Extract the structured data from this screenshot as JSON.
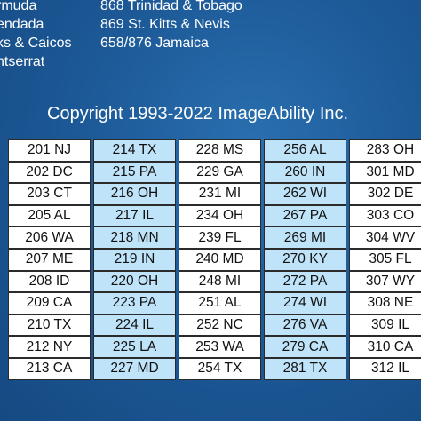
{
  "top_left": [
    "rmuda",
    "endada",
    "ks & Caicos",
    "ntserrat"
  ],
  "top_right": [
    "868 Trinidad & Tobago",
    "869 St. Kitts & Nevis",
    "658/876 Jamaica"
  ],
  "copyright": "Copyright 1993-2022 ImageAbility Inc.",
  "rows": [
    [
      "201 NJ",
      "214 TX",
      "228 MS",
      "256 AL",
      "283 OH"
    ],
    [
      "202 DC",
      "215 PA",
      "229 GA",
      "260 IN",
      "301 MD"
    ],
    [
      "203 CT",
      "216 OH",
      "231 MI",
      "262 WI",
      "302 DE"
    ],
    [
      "205 AL",
      "217 IL",
      "234 OH",
      "267 PA",
      "303 CO"
    ],
    [
      "206 WA",
      "218 MN",
      "239 FL",
      "269 MI",
      "304 WV"
    ],
    [
      "207 ME",
      "219 IN",
      "240 MD",
      "270 KY",
      "305 FL"
    ],
    [
      "208 ID",
      "220 OH",
      "248 MI",
      "272 PA",
      "307 WY"
    ],
    [
      "209 CA",
      "223 PA",
      "251 AL",
      "274 WI",
      "308 NE"
    ],
    [
      "210 TX",
      "224 IL",
      "252 NC",
      "276 VA",
      "309 IL"
    ],
    [
      "212 NY",
      "225 LA",
      "253 WA",
      "279 CA",
      "310 CA"
    ],
    [
      "213 CA",
      "227 MD",
      "254 TX",
      "281 TX",
      "312 IL"
    ]
  ],
  "colors": {
    "cell_white": "#ffffff",
    "cell_blue": "#bfe3f8",
    "background": "#1d5a98"
  }
}
